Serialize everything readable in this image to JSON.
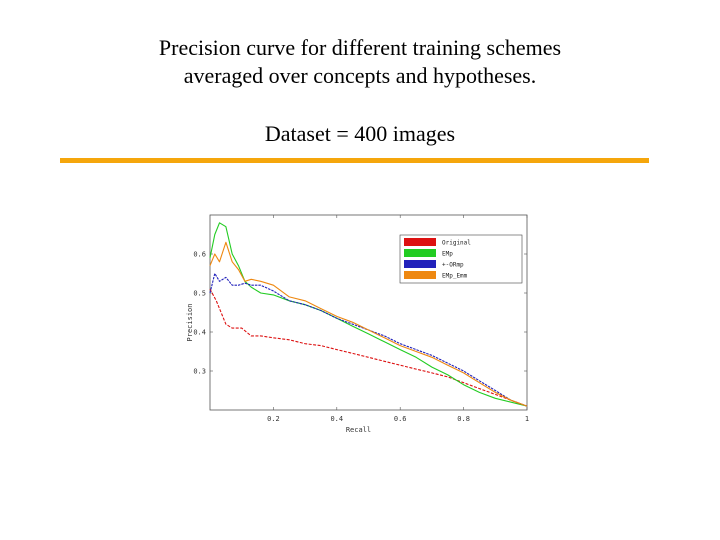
{
  "slide": {
    "title_line1": "Precision curve for different training schemes",
    "title_line2": "averaged over concepts and hypotheses.",
    "subtitle": "Dataset = 400 images",
    "rule_color": "#f5a60c"
  },
  "chart_data": {
    "type": "line",
    "title": "",
    "xlabel": "Recall",
    "ylabel": "Precision",
    "xlim": [
      0,
      1
    ],
    "ylim": [
      0.2,
      0.7
    ],
    "xticks": [
      0.2,
      0.4,
      0.6,
      0.8,
      1
    ],
    "xtick_labels": [
      "0.2",
      "0.4",
      "0.6",
      "0.8",
      "1"
    ],
    "yticks": [
      0.3,
      0.4,
      0.5,
      0.6
    ],
    "ytick_labels": [
      "0.3",
      "0.4",
      "0.5",
      "0.6"
    ],
    "grid": false,
    "legend_position": "top-right",
    "series": [
      {
        "name": "Original",
        "color": "#dd1111",
        "x": [
          0.0,
          0.02,
          0.04,
          0.05,
          0.07,
          0.1,
          0.13,
          0.16,
          0.2,
          0.25,
          0.3,
          0.35,
          0.4,
          0.45,
          0.5,
          0.55,
          0.6,
          0.65,
          0.7,
          0.75,
          0.8,
          0.85,
          0.9,
          0.95,
          1.0
        ],
        "y": [
          0.51,
          0.48,
          0.44,
          0.42,
          0.41,
          0.41,
          0.39,
          0.39,
          0.385,
          0.38,
          0.37,
          0.365,
          0.355,
          0.345,
          0.335,
          0.325,
          0.315,
          0.305,
          0.295,
          0.285,
          0.27,
          0.255,
          0.24,
          0.225,
          0.21
        ]
      },
      {
        "name": "EMp",
        "color": "#22cc22",
        "x": [
          0.0,
          0.015,
          0.03,
          0.05,
          0.07,
          0.09,
          0.11,
          0.13,
          0.16,
          0.2,
          0.25,
          0.3,
          0.35,
          0.4,
          0.45,
          0.5,
          0.55,
          0.6,
          0.65,
          0.7,
          0.75,
          0.8,
          0.85,
          0.9,
          0.95,
          1.0
        ],
        "y": [
          0.59,
          0.65,
          0.68,
          0.67,
          0.6,
          0.57,
          0.53,
          0.515,
          0.5,
          0.495,
          0.48,
          0.47,
          0.455,
          0.435,
          0.415,
          0.395,
          0.375,
          0.355,
          0.335,
          0.31,
          0.29,
          0.265,
          0.245,
          0.23,
          0.22,
          0.21
        ]
      },
      {
        "name": "+-ORmp",
        "color": "#2222bb",
        "x": [
          0.0,
          0.015,
          0.03,
          0.05,
          0.07,
          0.09,
          0.11,
          0.13,
          0.16,
          0.2,
          0.25,
          0.3,
          0.35,
          0.4,
          0.45,
          0.5,
          0.55,
          0.6,
          0.65,
          0.7,
          0.75,
          0.8,
          0.85,
          0.9,
          0.95,
          1.0
        ],
        "y": [
          0.5,
          0.55,
          0.53,
          0.54,
          0.52,
          0.52,
          0.525,
          0.52,
          0.52,
          0.505,
          0.48,
          0.47,
          0.455,
          0.435,
          0.42,
          0.405,
          0.39,
          0.37,
          0.355,
          0.34,
          0.32,
          0.3,
          0.275,
          0.25,
          0.225,
          0.21
        ]
      },
      {
        "name": "EMp_Emm",
        "color": "#ee8811",
        "x": [
          0.0,
          0.015,
          0.03,
          0.05,
          0.07,
          0.09,
          0.11,
          0.13,
          0.16,
          0.2,
          0.25,
          0.3,
          0.35,
          0.4,
          0.45,
          0.5,
          0.55,
          0.6,
          0.65,
          0.7,
          0.75,
          0.8,
          0.85,
          0.9,
          0.95,
          1.0
        ],
        "y": [
          0.57,
          0.6,
          0.58,
          0.63,
          0.58,
          0.56,
          0.53,
          0.535,
          0.53,
          0.52,
          0.49,
          0.48,
          0.46,
          0.44,
          0.425,
          0.405,
          0.385,
          0.365,
          0.35,
          0.335,
          0.315,
          0.295,
          0.27,
          0.245,
          0.225,
          0.21
        ]
      }
    ]
  }
}
